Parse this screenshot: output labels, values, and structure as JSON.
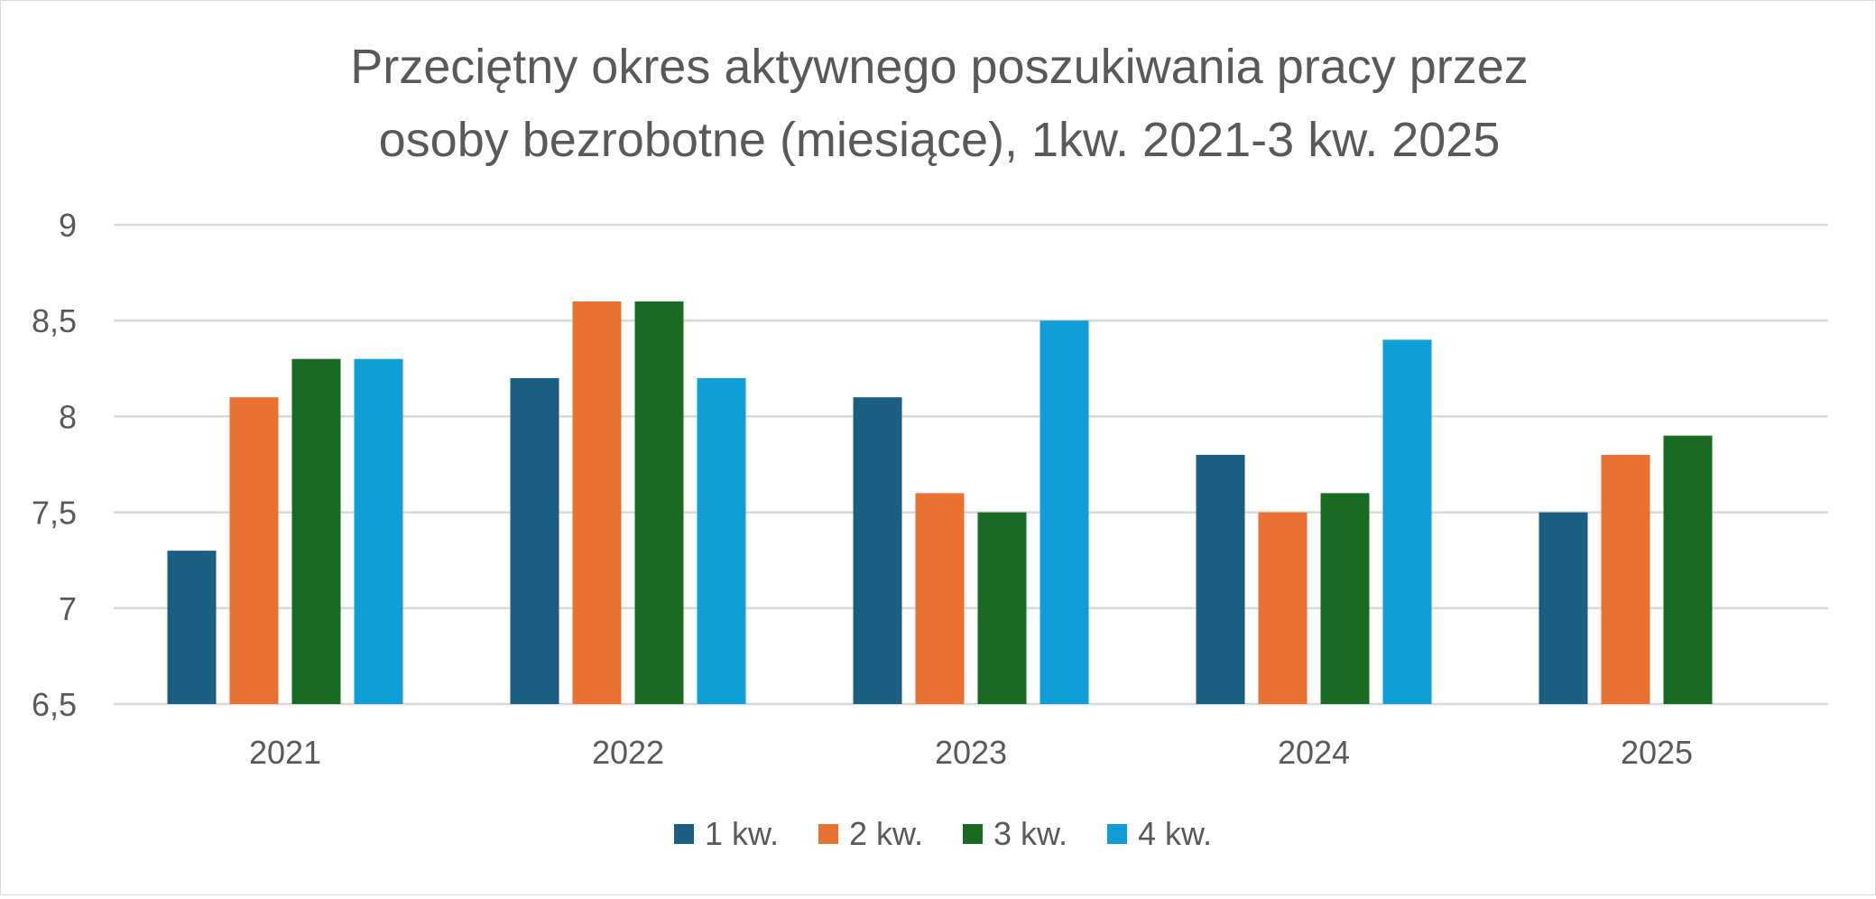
{
  "chart_data": {
    "type": "bar",
    "title_line1": "Przeciętny okres aktywnego poszukiwania pracy przez",
    "title_line2": "osoby bezrobotne (miesiące), 1kw. 2021-3 kw. 2025",
    "xlabel": "",
    "ylabel": "",
    "categories": [
      "2021",
      "2022",
      "2023",
      "2024",
      "2025"
    ],
    "ylim": [
      6.5,
      9
    ],
    "yticks": [
      "6,5",
      "7",
      "7,5",
      "8",
      "8,5",
      "9"
    ],
    "grid": true,
    "legend_position": "bottom",
    "series": [
      {
        "name": "1 kw.",
        "color": "#1a5e82",
        "values": [
          7.3,
          8.2,
          8.1,
          7.8,
          7.5
        ]
      },
      {
        "name": "2 kw.",
        "color": "#e97132",
        "values": [
          8.1,
          8.6,
          7.6,
          7.5,
          7.8
        ]
      },
      {
        "name": "3 kw.",
        "color": "#196b24",
        "values": [
          8.3,
          8.6,
          7.5,
          7.6,
          7.9
        ]
      },
      {
        "name": "4 kw.",
        "color": "#0f9ed5",
        "values": [
          8.3,
          8.2,
          8.5,
          8.4,
          null
        ]
      }
    ]
  }
}
